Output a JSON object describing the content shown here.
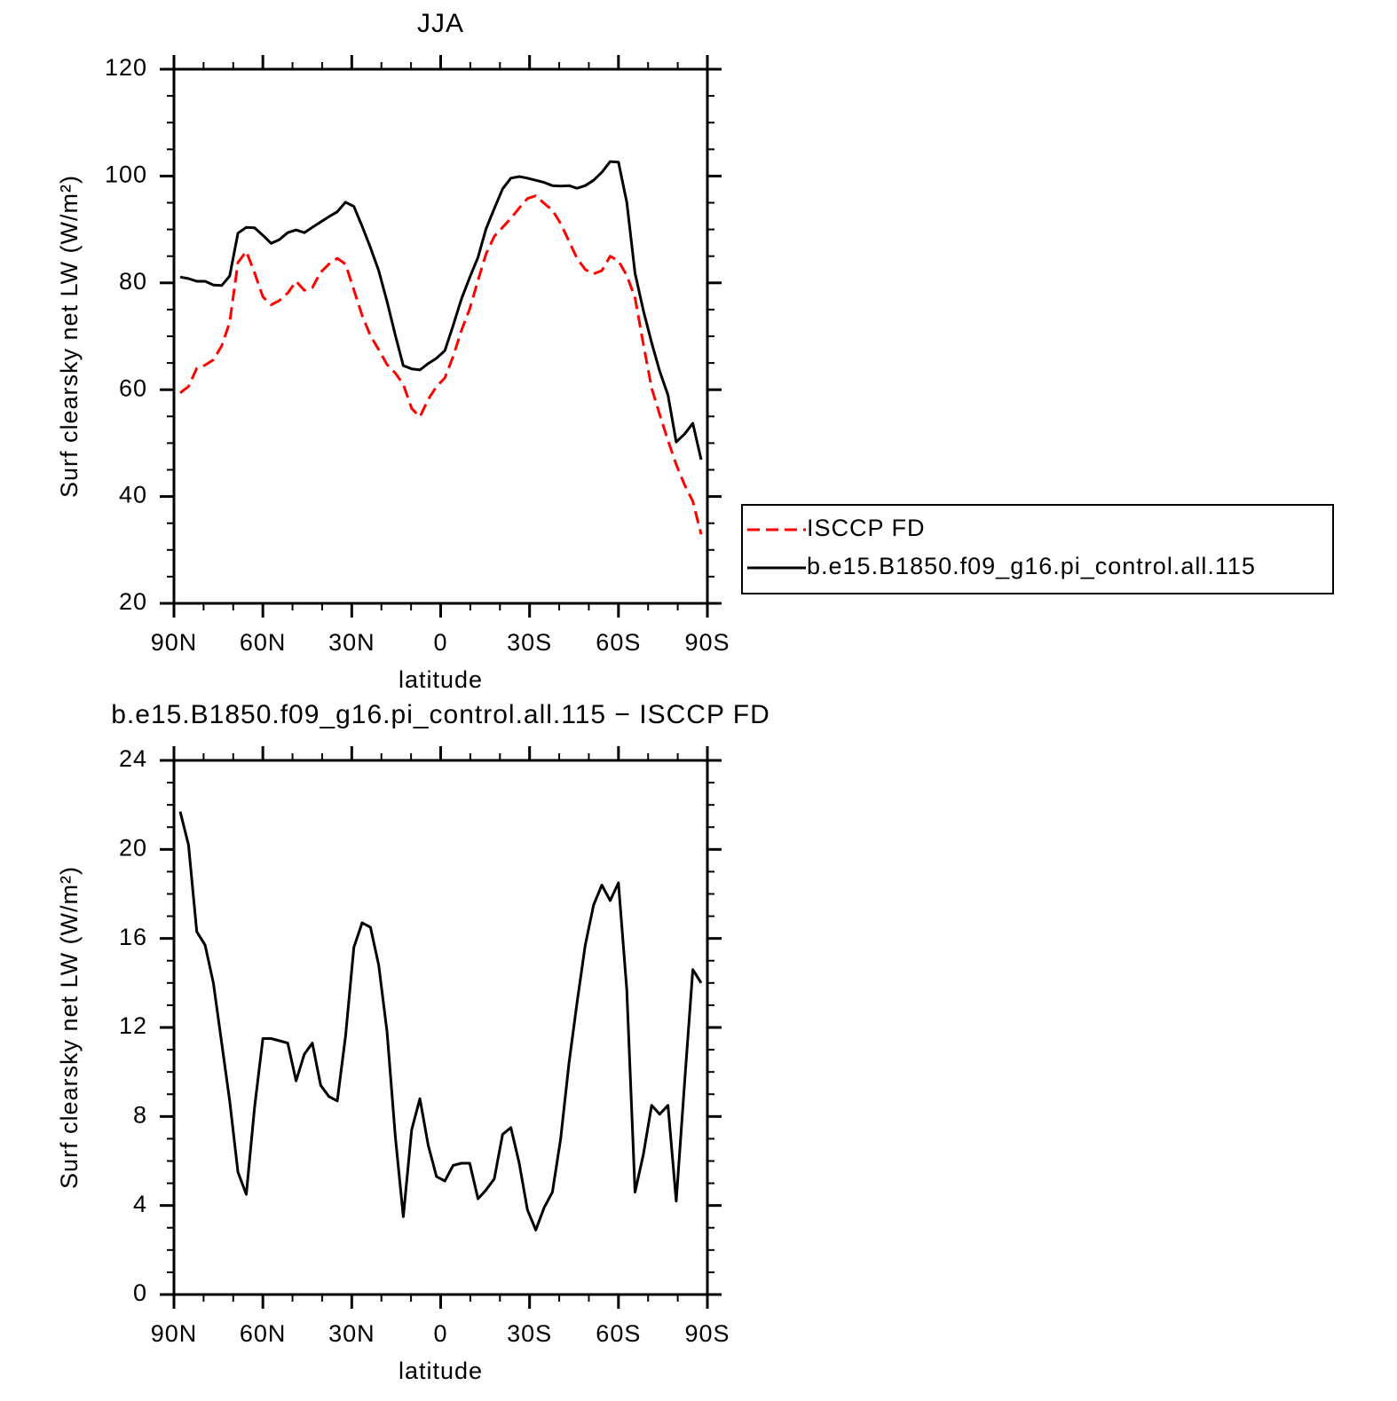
{
  "chart_data": [
    {
      "type": "line",
      "title": "JJA",
      "xlabel": "latitude",
      "ylabel": "Surf clearsky net LW (W/m²)",
      "x": [
        87.9,
        85.1,
        82.3,
        79.5,
        76.7,
        73.9,
        71.2,
        68.4,
        65.6,
        62.8,
        60.0,
        57.2,
        54.4,
        51.6,
        48.8,
        46.0,
        43.3,
        40.5,
        37.7,
        34.9,
        32.1,
        29.3,
        26.5,
        23.7,
        20.9,
        18.1,
        15.3,
        12.6,
        9.8,
        7.0,
        4.2,
        1.4,
        -1.4,
        -4.2,
        -7.0,
        -9.8,
        -12.6,
        -15.3,
        -18.1,
        -20.9,
        -23.7,
        -26.5,
        -29.3,
        -32.1,
        -34.9,
        -37.7,
        -40.5,
        -43.3,
        -46.0,
        -48.8,
        -51.6,
        -54.4,
        -57.2,
        -60.0,
        -62.8,
        -65.6,
        -68.4,
        -71.2,
        -73.9,
        -76.7,
        -79.5,
        -82.3,
        -85.1,
        -87.9
      ],
      "series": [
        {
          "name": "ISCCP FD",
          "color": "#ff0000",
          "dash": true,
          "values": [
            59.4,
            60.6,
            64.0,
            64.6,
            65.6,
            68.2,
            72.6,
            83.8,
            85.9,
            81.9,
            77.4,
            75.9,
            76.7,
            78.1,
            80.3,
            78.6,
            79.1,
            82.0,
            83.5,
            84.6,
            83.5,
            78.7,
            73.9,
            70.1,
            67.5,
            64.7,
            63.1,
            61.0,
            56.5,
            54.9,
            58.2,
            60.6,
            62.2,
            66.2,
            71.1,
            75.1,
            80.5,
            85.4,
            88.7,
            90.4,
            92.1,
            94.0,
            95.8,
            96.3,
            94.9,
            93.6,
            91.1,
            87.8,
            84.6,
            82.5,
            81.7,
            82.3,
            85.0,
            84.1,
            81.4,
            77.2,
            68.5,
            60.3,
            55.4,
            50.5,
            46.0,
            42.2,
            39.1,
            32.9
          ]
        },
        {
          "name": "b.e15.B1850.f09_g16.pi_control.all.115",
          "color": "#000000",
          "dash": false,
          "values": [
            81.1,
            80.8,
            80.3,
            80.3,
            79.6,
            79.5,
            81.3,
            89.3,
            90.4,
            90.3,
            88.9,
            87.4,
            88.1,
            89.4,
            89.9,
            89.4,
            90.4,
            91.4,
            92.4,
            93.3,
            95.1,
            94.3,
            90.6,
            86.6,
            82.3,
            76.5,
            70.2,
            64.5,
            63.9,
            63.7,
            64.9,
            65.9,
            67.3,
            72.0,
            77.0,
            81.0,
            84.8,
            90.1,
            93.9,
            97.6,
            99.6,
            99.9,
            99.6,
            99.2,
            98.8,
            98.2,
            98.1,
            98.2,
            97.7,
            98.2,
            99.2,
            100.7,
            102.7,
            102.6,
            95.1,
            81.8,
            74.8,
            68.8,
            63.5,
            59.0,
            50.2,
            51.7,
            53.7,
            46.9
          ]
        }
      ],
      "xlim": [
        90,
        -90
      ],
      "xticks": [
        {
          "value": 90,
          "label": "90N"
        },
        {
          "value": 60,
          "label": "60N"
        },
        {
          "value": 30,
          "label": "30N"
        },
        0,
        {
          "value": -30,
          "label": "30S"
        },
        {
          "value": -60,
          "label": "60S"
        },
        {
          "value": -90,
          "label": "90S"
        }
      ],
      "xminorticks": [
        80,
        70,
        50,
        40,
        20,
        10,
        -10,
        -20,
        -40,
        -50,
        -70,
        -80
      ],
      "ylim": [
        20,
        120
      ],
      "yticks": [
        20,
        40,
        60,
        80,
        100,
        120
      ],
      "yminorticks": [
        25,
        30,
        35,
        45,
        50,
        55,
        65,
        70,
        75,
        85,
        90,
        95,
        105,
        110,
        115
      ],
      "legend": "outside-right"
    },
    {
      "type": "line",
      "title": "b.e15.B1850.f09_g16.pi_control.all.115 − ISCCP FD",
      "xlabel": "latitude",
      "ylabel": "Surf clearsky net LW (W/m²)",
      "x": [
        87.9,
        85.1,
        82.3,
        79.5,
        76.7,
        73.9,
        71.2,
        68.4,
        65.6,
        62.8,
        60.0,
        57.2,
        54.4,
        51.6,
        48.8,
        46.0,
        43.3,
        40.5,
        37.7,
        34.9,
        32.1,
        29.3,
        26.5,
        23.7,
        20.9,
        18.1,
        15.3,
        12.6,
        9.8,
        7.0,
        4.2,
        1.4,
        -1.4,
        -4.2,
        -7.0,
        -9.8,
        -12.6,
        -15.3,
        -18.1,
        -20.9,
        -23.7,
        -26.5,
        -29.3,
        -32.1,
        -34.9,
        -37.7,
        -40.5,
        -43.3,
        -46.0,
        -48.8,
        -51.6,
        -54.4,
        -57.2,
        -60.0,
        -62.8,
        -65.6,
        -68.4,
        -71.2,
        -73.9,
        -76.7,
        -79.5,
        -82.3,
        -85.1,
        -87.9
      ],
      "values": [
        21.7,
        20.2,
        16.3,
        15.7,
        14.0,
        11.3,
        8.7,
        5.5,
        4.5,
        8.4,
        11.5,
        11.5,
        11.4,
        11.3,
        9.6,
        10.8,
        11.3,
        9.4,
        8.9,
        8.7,
        11.6,
        15.6,
        16.7,
        16.5,
        14.8,
        11.8,
        7.1,
        3.5,
        7.4,
        8.8,
        6.7,
        5.3,
        5.1,
        5.8,
        5.9,
        5.9,
        4.3,
        4.7,
        5.2,
        7.2,
        7.5,
        5.9,
        3.8,
        2.9,
        3.9,
        4.6,
        7.0,
        10.4,
        13.1,
        15.7,
        17.5,
        18.4,
        17.7,
        18.5,
        13.7,
        4.6,
        6.3,
        8.5,
        8.1,
        8.5,
        4.2,
        9.5,
        14.6,
        14.0
      ],
      "color": "#000000",
      "xlim": [
        90,
        -90
      ],
      "xticks": [
        {
          "value": 90,
          "label": "90N"
        },
        {
          "value": 60,
          "label": "60N"
        },
        {
          "value": 30,
          "label": "30N"
        },
        0,
        {
          "value": -30,
          "label": "30S"
        },
        {
          "value": -60,
          "label": "60S"
        },
        {
          "value": -90,
          "label": "90S"
        }
      ],
      "xminorticks": [
        80,
        70,
        50,
        40,
        20,
        10,
        -10,
        -20,
        -40,
        -50,
        -70,
        -80
      ],
      "ylim": [
        0,
        24
      ],
      "yticks": [
        0,
        4,
        8,
        12,
        16,
        20,
        24
      ],
      "yminorticks": [
        1,
        2,
        3,
        5,
        6,
        7,
        9,
        10,
        11,
        13,
        14,
        15,
        17,
        18,
        19,
        21,
        22,
        23
      ]
    }
  ]
}
